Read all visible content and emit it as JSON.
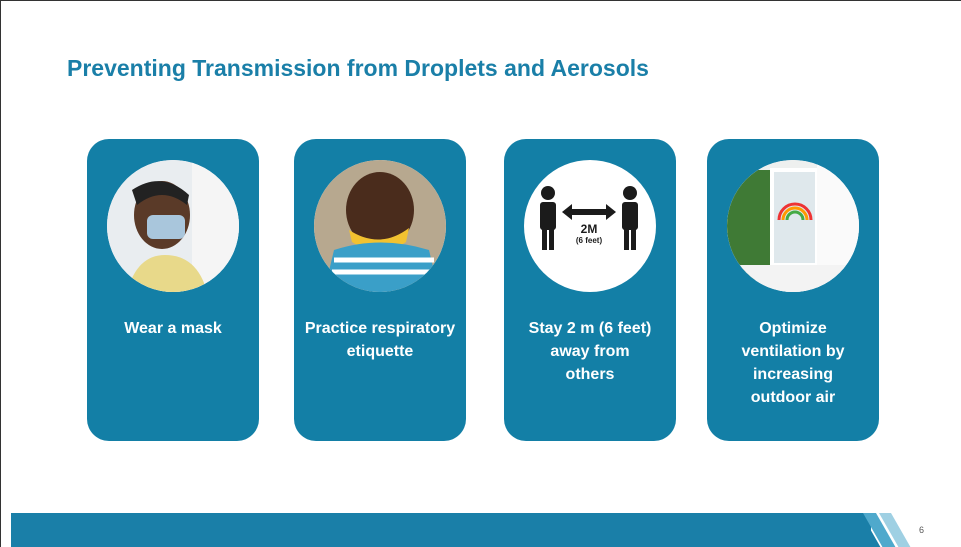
{
  "slide": {
    "title": "Preventing Transmission from Droplets and Aerosols",
    "cards": [
      {
        "lines": [
          "Wear a mask"
        ]
      },
      {
        "lines": [
          "Practice respiratory",
          "etiquette"
        ]
      },
      {
        "lines": [
          "Stay 2 m (6 feet)",
          "away from",
          "others"
        ],
        "sign": {
          "distance": "2M",
          "note": "(6 feet)"
        }
      },
      {
        "lines": [
          "Optimize",
          "ventilation by",
          "increasing",
          "outdoor air"
        ]
      }
    ],
    "page_number": "6"
  }
}
